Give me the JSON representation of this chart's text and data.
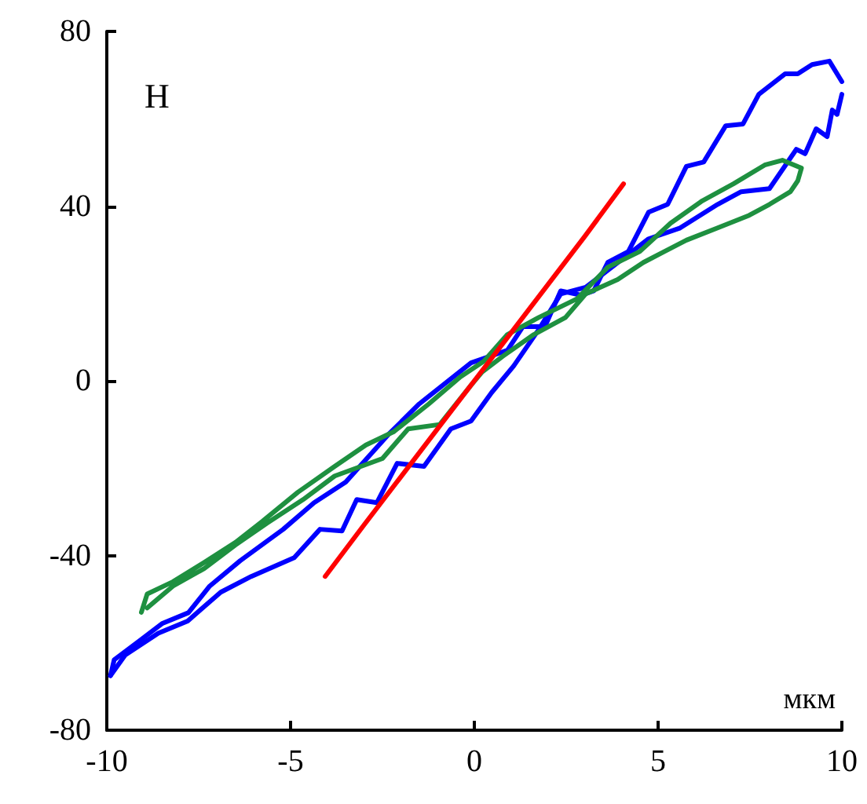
{
  "chart_data": {
    "type": "line",
    "xlabel": "мкм",
    "ylabel": "Н",
    "xlim": [
      -10,
      10
    ],
    "xticks": [
      -10,
      -5,
      0,
      5,
      10
    ],
    "ylim": [
      -80,
      80
    ],
    "yticks": [
      -80,
      -40,
      0,
      40,
      80
    ],
    "grid": false,
    "marker": "none",
    "line_style": "solid",
    "series": [
      {
        "color": "#0000ff",
        "x": [
          -9.9,
          -9.5,
          -8.6,
          -7.8,
          -6.9,
          -6.07,
          -4.9,
          -4.2,
          -3.6,
          -3.2,
          -2.65,
          -2.1,
          -1.37,
          -0.64,
          -0.09,
          0.47,
          1.07,
          1.75,
          2.35,
          3.03,
          4.74,
          5.6,
          6.62,
          7.26,
          8.03,
          8.76,
          9.0,
          9.3,
          9.6,
          9.74,
          9.87,
          10.0
        ],
        "values": [
          -67.5,
          -62.8,
          -57.8,
          -55,
          -48.4,
          -44.8,
          -40.5,
          -34,
          -34.4,
          -27.2,
          -27.9,
          -18.9,
          -19.6,
          -11,
          -9.2,
          -2.7,
          3.4,
          11.7,
          19.9,
          21.4,
          32.5,
          35,
          40.4,
          43.3,
          44,
          53,
          52,
          57.7,
          55.9,
          62,
          61,
          65.6
        ]
      },
      {
        "color": "#0000ff",
        "x": [
          10.0,
          9.66,
          9.19,
          8.8,
          8.46,
          7.74,
          7.31,
          6.84,
          6.24,
          5.77,
          5.26,
          4.74,
          4.19,
          3.63,
          3.25,
          2.91,
          2.35,
          1.92,
          1.32,
          0.9,
          -0.09,
          -1.5,
          -2.35,
          -3.5,
          -4.36,
          -5.2,
          -6.37,
          -7.2,
          -7.78,
          -8.5,
          -9.06,
          -9.8,
          -9.9
        ],
        "values": [
          68.5,
          73.2,
          72.4,
          70.3,
          70.3,
          65.6,
          58.8,
          58.4,
          50.1,
          49.1,
          40.4,
          38.6,
          29.6,
          27.1,
          20.6,
          19.6,
          20.6,
          12.4,
          12.4,
          7,
          4.1,
          -5.3,
          -12.4,
          -23.2,
          -27.9,
          -34,
          -41.2,
          -47,
          -53.1,
          -55.6,
          -59.2,
          -63.9,
          -67.5
        ]
      },
      {
        "color": "#1e9040",
        "x": [
          -9.06,
          -8.9,
          -8.2,
          -7.35,
          -6.5,
          -5.77,
          -4.8,
          -3.8,
          -2.95,
          -2.2,
          -1.24,
          -0.38,
          0.26,
          0.9,
          1.75,
          2.8,
          3.63,
          4.5,
          5.34,
          6.2,
          7.05,
          7.9,
          8.38,
          8.9,
          8.8,
          8.6,
          8.03,
          7.48,
          6.62,
          5.77,
          5.17,
          4.6,
          3.9,
          3.03,
          2.48,
          1.62,
          0.77,
          0.21,
          -0.09,
          -0.94,
          -1.8,
          -2.5,
          -3.8,
          -4.66,
          -5.64,
          -6.5,
          -7.35,
          -8.2,
          -8.9
        ],
        "values": [
          -53,
          -48.8,
          -46,
          -41.6,
          -37,
          -32.2,
          -25.5,
          -19.6,
          -14.7,
          -11.7,
          -5.3,
          0.9,
          4.5,
          10.6,
          14.5,
          18.8,
          26,
          29.6,
          36.1,
          41.2,
          45.1,
          49.4,
          50.5,
          48.7,
          45.8,
          43.3,
          40.4,
          37.9,
          35,
          32.2,
          29.6,
          27.1,
          23.2,
          19.9,
          14.5,
          10.6,
          5.6,
          2,
          -1,
          -10,
          -11,
          -17.8,
          -21.8,
          -27.2,
          -32.6,
          -37.6,
          -43,
          -47,
          -52
        ]
      },
      {
        "color": "#ff0000",
        "x": [
          -4.06,
          -3,
          -2,
          -1,
          0,
          1,
          2,
          3,
          4.06
        ],
        "values": [
          -44.8,
          -33,
          -22,
          -11,
          0,
          11,
          22,
          33,
          45.1
        ]
      }
    ]
  }
}
